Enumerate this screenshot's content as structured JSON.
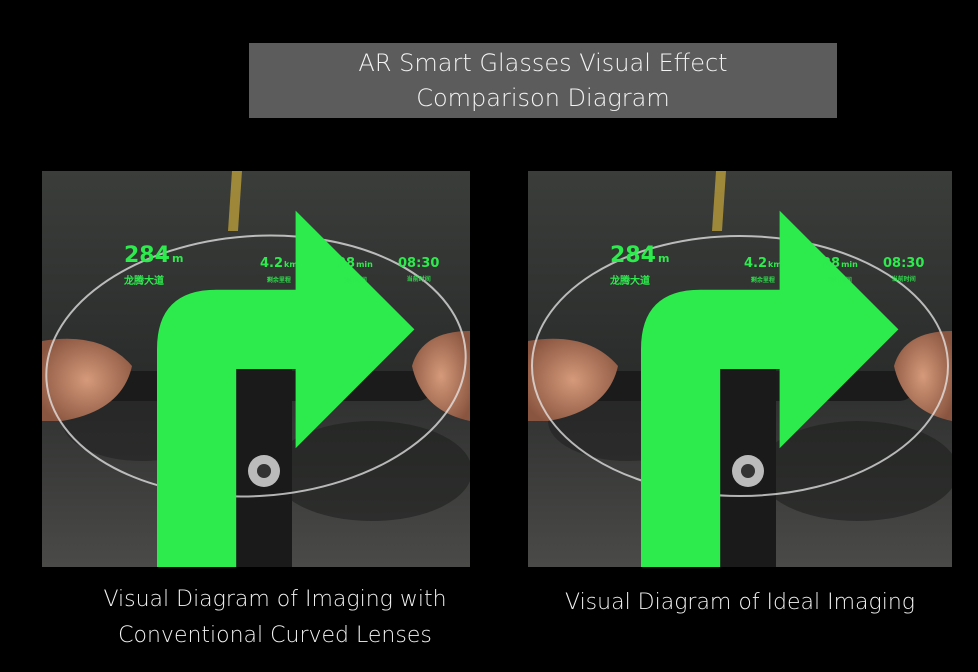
{
  "title": {
    "line1": "AR Smart Glasses Visual Effect",
    "line2": "Comparison Diagram"
  },
  "hud": {
    "distance": "284",
    "distance_unit": "m",
    "road": "龙腾大道",
    "remaining_distance": "4.2",
    "remaining_distance_unit": "km",
    "remaining_distance_label": "剩余里程",
    "time_value": "28",
    "time_unit": "min",
    "time_label": "预计时间",
    "clock": "08:30",
    "clock_label": "当前时间",
    "hud_color": "#2dea4d"
  },
  "captions": {
    "left_line1": "Visual Diagram of Imaging with",
    "left_line2": "Conventional Curved Lenses",
    "right": "Visual Diagram of Ideal Imaging"
  }
}
